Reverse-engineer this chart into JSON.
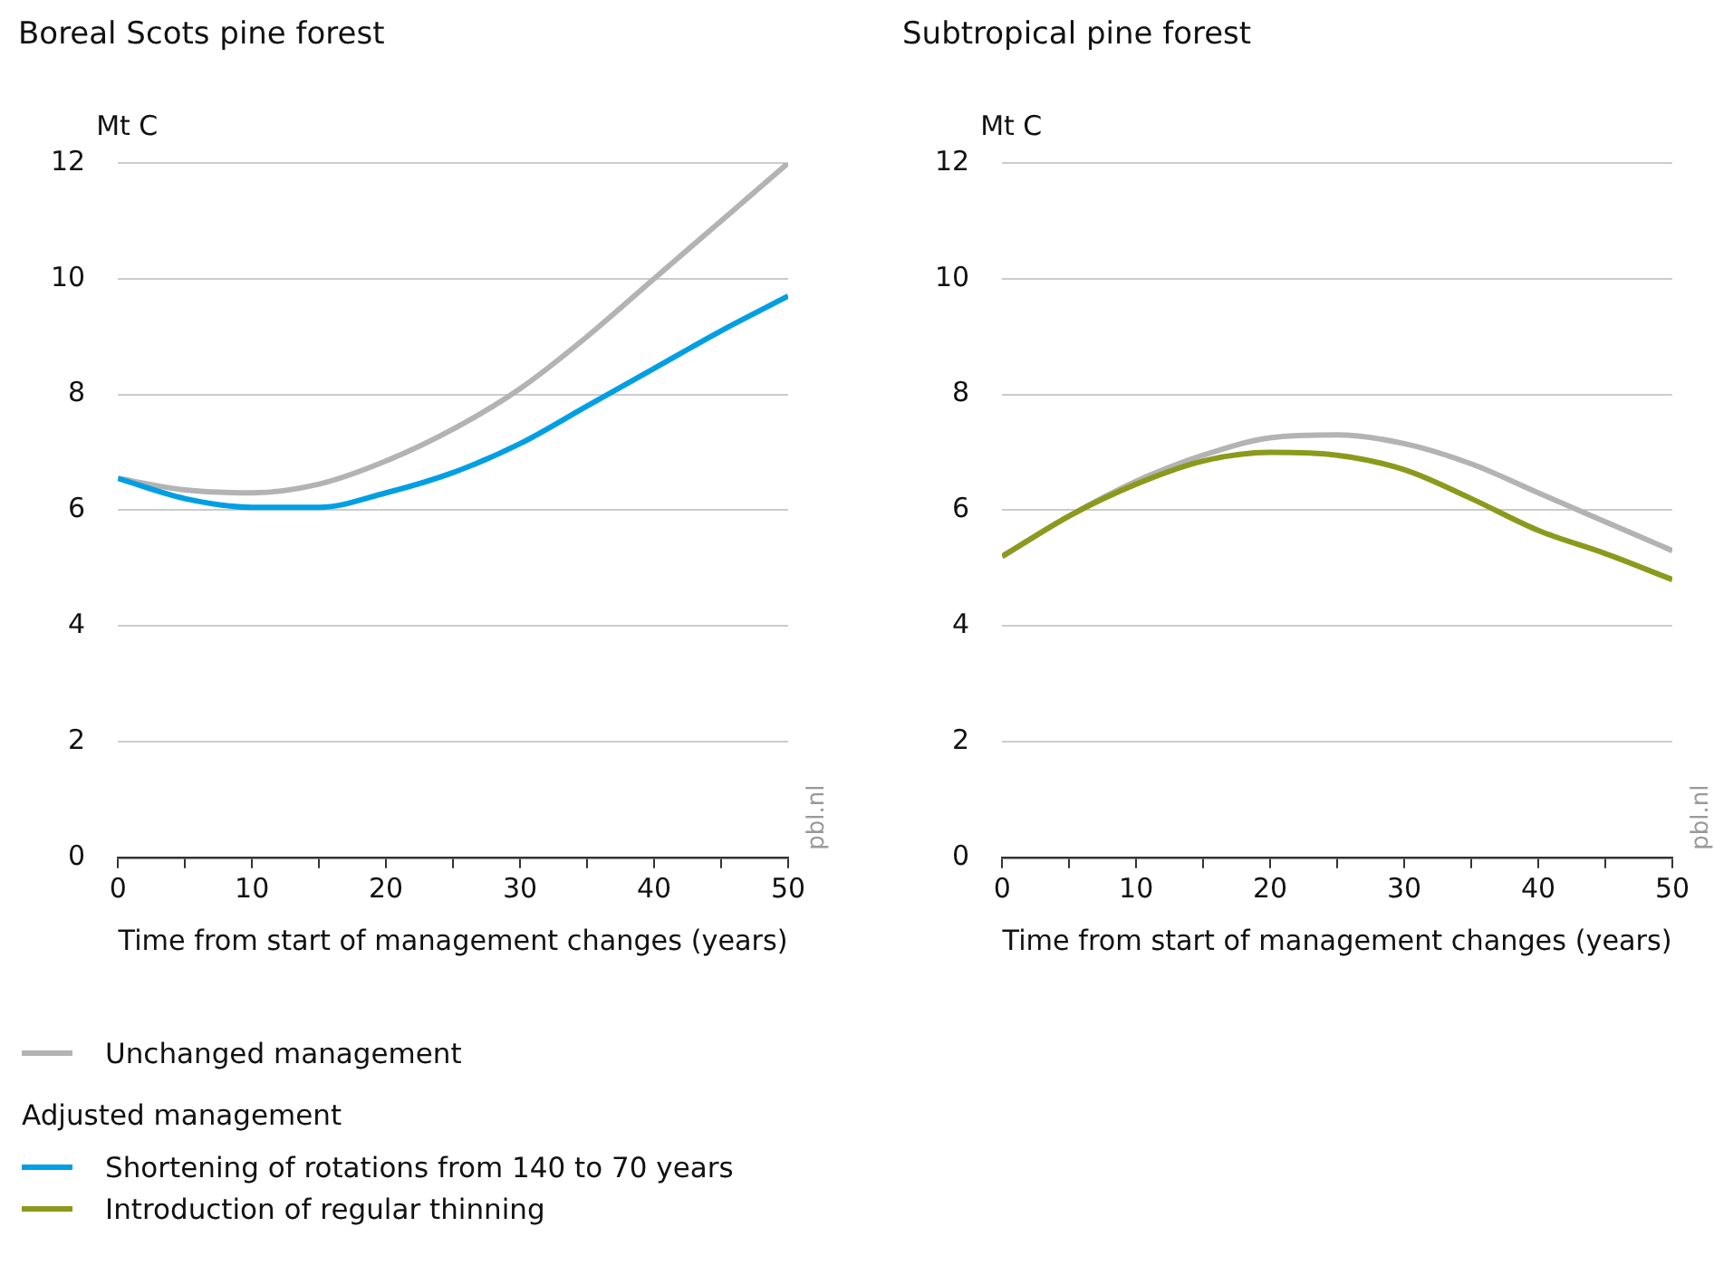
{
  "chart_data": [
    {
      "type": "line",
      "title": "Boreal Scots pine forest",
      "ylabel": "Mt C",
      "xlabel": "Time from start of management changes (years)",
      "x": [
        0,
        5,
        10,
        15,
        20,
        25,
        30,
        35,
        40,
        45,
        50
      ],
      "series": [
        {
          "name": "Unchanged management",
          "color": "#b3b3b3",
          "values": [
            6.55,
            6.35,
            6.3,
            6.45,
            6.85,
            7.4,
            8.1,
            9.0,
            10.0,
            11.0,
            12.0
          ]
        },
        {
          "name": "Shortening of rotations from 140 to 70 years",
          "color": "#009fe3",
          "values": [
            6.55,
            6.2,
            6.05,
            6.05,
            6.3,
            6.65,
            7.15,
            7.8,
            8.45,
            9.1,
            9.7
          ]
        }
      ],
      "xlim": [
        0,
        50
      ],
      "xticks": [
        0,
        {
          "value": 5,
          "label": null
        },
        10,
        {
          "value": 15,
          "label": null
        },
        20,
        {
          "value": 25,
          "label": null
        },
        30,
        {
          "value": 35,
          "label": null
        },
        40,
        {
          "value": 45,
          "label": null
        },
        50
      ],
      "ylim": [
        0,
        12
      ],
      "yticks": [
        0,
        2,
        4,
        6,
        8,
        10,
        12
      ],
      "grid": "y",
      "legend": "bottom",
      "legend_title": "Adjusted management",
      "line_style": "solid",
      "annotations": [
        "pbl.nl"
      ]
    },
    {
      "type": "line",
      "title": "Subtropical pine forest",
      "ylabel": "Mt C",
      "xlabel": "Time from start of management changes (years)",
      "x": [
        0,
        5,
        10,
        15,
        20,
        25,
        30,
        35,
        40,
        45,
        50
      ],
      "series": [
        {
          "name": "Unchanged management",
          "color": "#b3b3b3",
          "values": [
            5.2,
            5.9,
            6.5,
            6.95,
            7.25,
            7.3,
            7.15,
            6.8,
            6.3,
            5.8,
            5.3
          ]
        },
        {
          "name": "Introduction of regular thinning",
          "color": "#8c9a1c",
          "values": [
            5.2,
            5.9,
            6.45,
            6.85,
            7.0,
            6.95,
            6.7,
            6.2,
            5.65,
            5.25,
            4.8
          ]
        }
      ],
      "xlim": [
        0,
        50
      ],
      "xticks": [
        0,
        {
          "value": 5,
          "label": null
        },
        10,
        {
          "value": 15,
          "label": null
        },
        20,
        {
          "value": 25,
          "label": null
        },
        30,
        {
          "value": 35,
          "label": null
        },
        40,
        {
          "value": 45,
          "label": null
        },
        50
      ],
      "ylim": [
        0,
        12
      ],
      "yticks": [
        0,
        2,
        4,
        6,
        8,
        10,
        12
      ],
      "grid": "y",
      "legend": "bottom",
      "line_style": "solid",
      "annotations": [
        "pbl.nl"
      ]
    }
  ]
}
